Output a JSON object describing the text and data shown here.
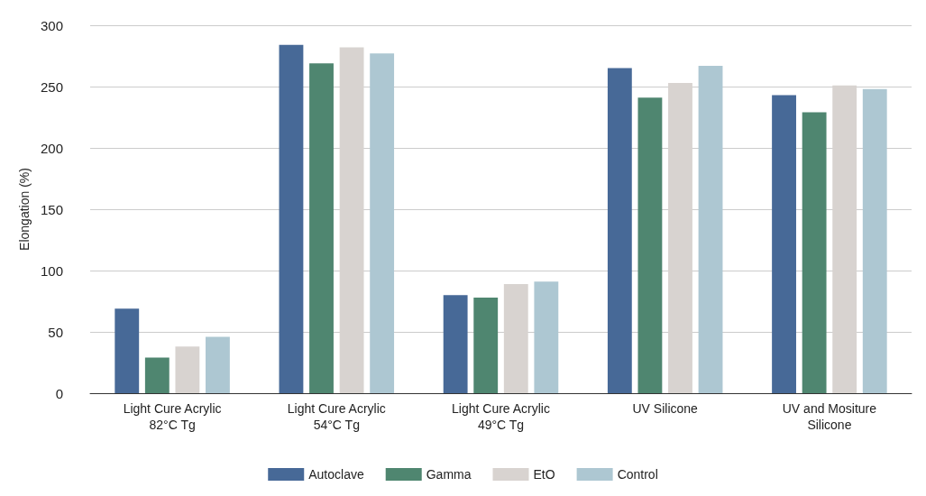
{
  "chart_data": {
    "type": "bar",
    "ylabel": "Elongation (%)",
    "categories": [
      "Light Cure Acrylic\n82°C Tg",
      "Light Cure Acrylic\n54°C Tg",
      "Light Cure Acrylic\n49°C Tg",
      "UV Silicone",
      "UV and Mositure\nSilicone"
    ],
    "series": [
      {
        "name": "Autoclave",
        "color": "#476997",
        "values": [
          69,
          284,
          80,
          265,
          243
        ]
      },
      {
        "name": "Gamma",
        "color": "#4f8670",
        "values": [
          29,
          269,
          78,
          241,
          229
        ]
      },
      {
        "name": "EtO",
        "color": "#d8d3d0",
        "values": [
          38,
          282,
          89,
          253,
          251
        ]
      },
      {
        "name": "Control",
        "color": "#adc7d2",
        "values": [
          46,
          277,
          91,
          267,
          248
        ]
      }
    ],
    "ylim": [
      0,
      300
    ],
    "yticks": [
      0,
      50,
      100,
      150,
      200,
      250,
      300
    ],
    "grid": "y",
    "legend": "bottom"
  }
}
